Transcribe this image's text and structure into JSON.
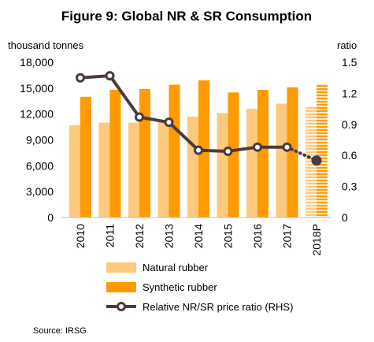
{
  "chart_data": {
    "type": "bar",
    "title": "Figure 9: Global NR & SR Consumption",
    "ylabel_left": "thousand tonnes",
    "ylabel_right": "ratio",
    "categories": [
      "2010",
      "2011",
      "2012",
      "2013",
      "2014",
      "2015",
      "2016",
      "2017",
      "2018P"
    ],
    "ylim_left": [
      0,
      18000
    ],
    "yticks_left": [
      0,
      3000,
      6000,
      9000,
      12000,
      15000,
      18000
    ],
    "ytick_labels_left": [
      "0",
      "3,000",
      "6,000",
      "9,000",
      "12,000",
      "15,000",
      "18,000"
    ],
    "ylim_right": [
      0,
      1.5
    ],
    "yticks_right": [
      0,
      0.3,
      0.6,
      0.9,
      1.2,
      1.5
    ],
    "ytick_labels_right": [
      "0",
      "0.3",
      "0.6",
      "0.9",
      "1.2",
      "1.5"
    ],
    "grid": false,
    "legend_position": "bottom",
    "projected_category": "2018P",
    "series": [
      {
        "name": "Natural rubber",
        "type": "bar",
        "axis": "left",
        "color": "#FCC97E",
        "values": [
          10700,
          11000,
          11000,
          11200,
          11700,
          12100,
          12600,
          13200,
          12800
        ]
      },
      {
        "name": "Synthetic rubber",
        "type": "bar",
        "axis": "left",
        "color": "#FF9A00",
        "values": [
          14000,
          14800,
          14900,
          15400,
          15900,
          14500,
          14800,
          15100,
          15500
        ]
      },
      {
        "name": "Relative NR/SR price ratio (RHS)",
        "type": "line",
        "axis": "right",
        "color": "#4A3C3C",
        "values": [
          1.35,
          1.37,
          0.97,
          0.92,
          0.65,
          0.64,
          0.68,
          0.68,
          0.55
        ]
      }
    ],
    "source": "Source: IRSG"
  }
}
